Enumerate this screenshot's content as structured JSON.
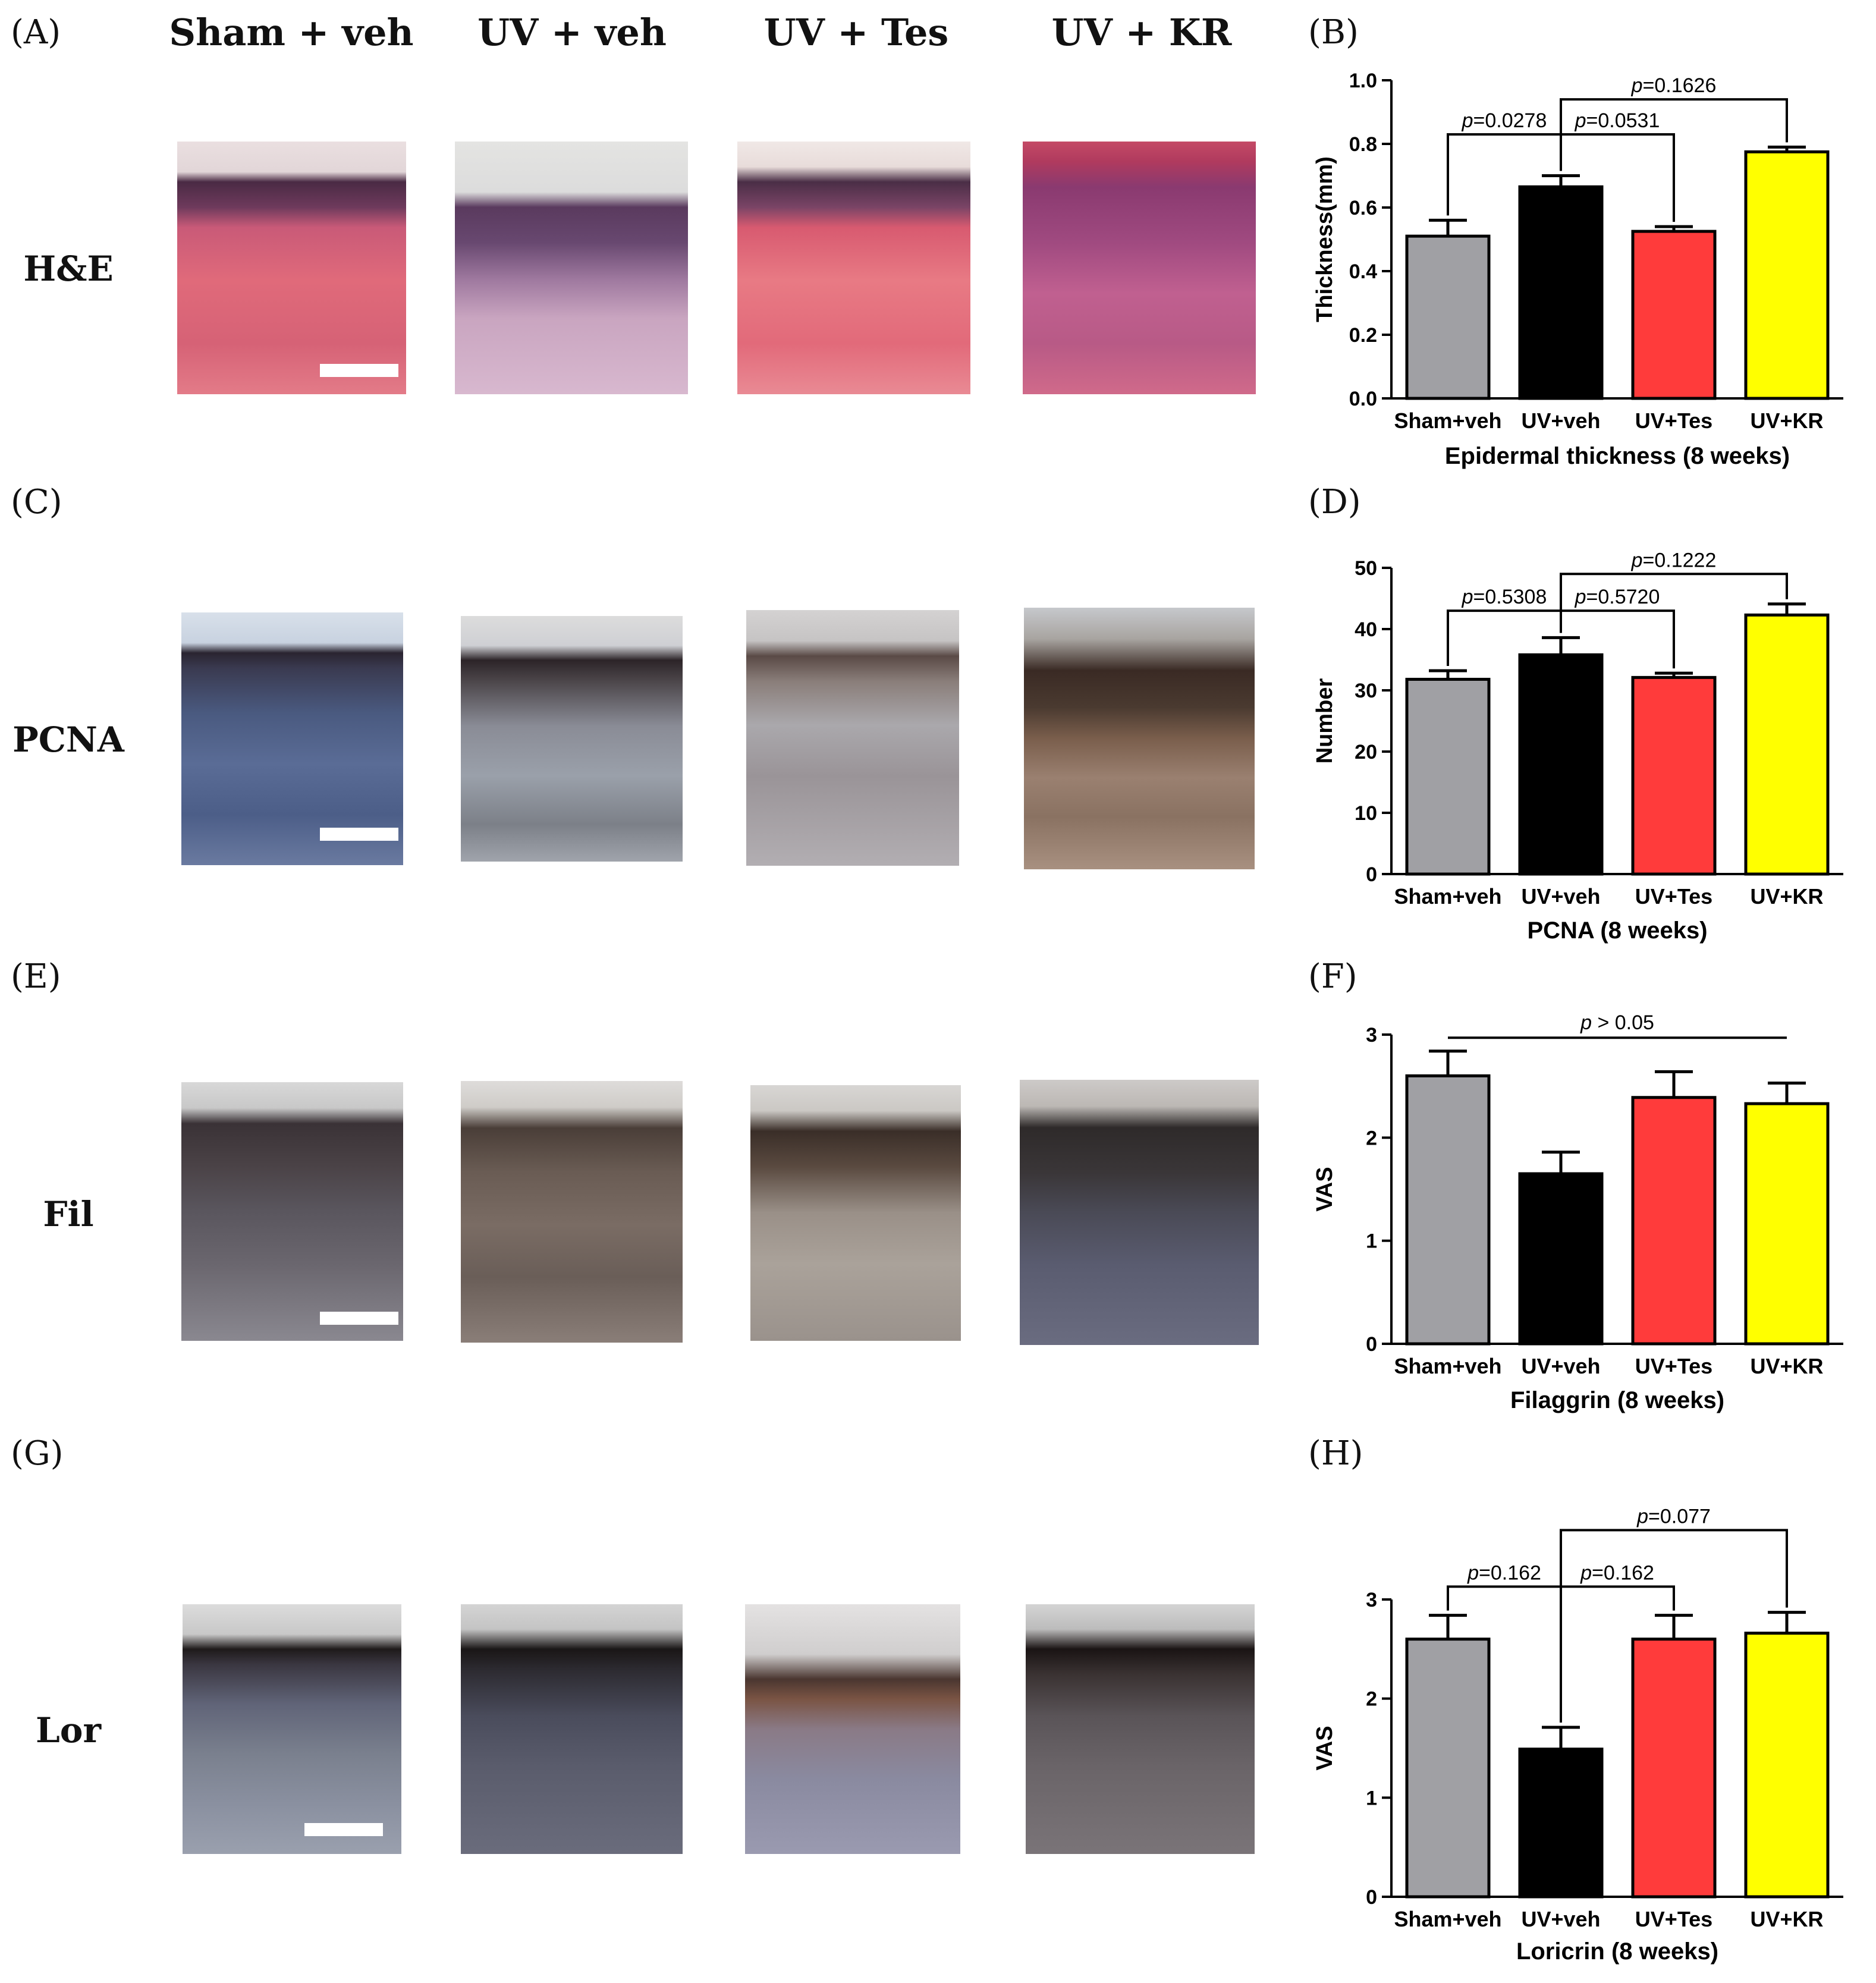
{
  "panel_letters": [
    "(A)",
    "(B)",
    "(C)",
    "(D)",
    "(E)",
    "(F)",
    "(G)",
    "(H)"
  ],
  "column_headers": [
    "Sham + veh",
    "UV + veh",
    "UV + Tes",
    "UV + KR"
  ],
  "row_labels": [
    "H&E",
    "PCNA",
    "Fil",
    "Lor"
  ],
  "chart_data": [
    {
      "type": "bar",
      "categories": [
        "Sham+veh",
        "UV+veh",
        "UV+Tes",
        "UV+KR"
      ],
      "values": [
        0.51,
        0.665,
        0.525,
        0.775
      ],
      "errors": [
        0.05,
        0.035,
        0.015,
        0.015
      ],
      "colors": [
        "#a0a0a4",
        "#000000",
        "#ff3b3b",
        "#ffff00"
      ],
      "xlabel": "Epidermal thickness (8 weeks)",
      "ylabel": "Thickness(mm)",
      "ylim": [
        0,
        1.0
      ],
      "yticks": [
        "0.0",
        "0.2",
        "0.4",
        "0.6",
        "0.8",
        "1.0"
      ],
      "comparisons": [
        {
          "from": 0,
          "to": 1,
          "p": "0.0278",
          "level": 0.83
        },
        {
          "from": 1,
          "to": 2,
          "p": "0.0531",
          "level": 0.83
        },
        {
          "from": 1,
          "to": 3,
          "p": "0.1626",
          "level": 0.94
        }
      ]
    },
    {
      "type": "bar",
      "categories": [
        "Sham+veh",
        "UV+veh",
        "UV+Tes",
        "UV+KR"
      ],
      "values": [
        31.8,
        35.8,
        32.1,
        42.3
      ],
      "errors": [
        1.4,
        2.8,
        0.7,
        1.8
      ],
      "colors": [
        "#a0a0a4",
        "#000000",
        "#ff3b3b",
        "#ffff00"
      ],
      "xlabel": "PCNA (8 weeks)",
      "ylabel": "Number",
      "ylim": [
        0,
        50
      ],
      "yticks": [
        "0",
        "10",
        "20",
        "30",
        "40",
        "50"
      ],
      "comparisons": [
        {
          "from": 0,
          "to": 1,
          "p": "0.5308",
          "level": 43
        },
        {
          "from": 1,
          "to": 2,
          "p": "0.5720",
          "level": 43
        },
        {
          "from": 1,
          "to": 3,
          "p": "0.1222",
          "level": 49
        }
      ]
    },
    {
      "type": "bar",
      "categories": [
        "Sham+veh",
        "UV+veh",
        "UV+Tes",
        "UV+KR"
      ],
      "values": [
        2.6,
        1.65,
        2.39,
        2.33
      ],
      "errors": [
        0.24,
        0.21,
        0.25,
        0.2
      ],
      "colors": [
        "#a0a0a4",
        "#000000",
        "#ff3b3b",
        "#ffff00"
      ],
      "xlabel": "Filaggrin (8 weeks)",
      "ylabel": "VAS",
      "ylim": [
        0,
        3
      ],
      "yticks": [
        "0",
        "1",
        "2",
        "3"
      ],
      "overall_comparison": {
        "from": 0,
        "to": 3,
        "p": "> 0.05",
        "level": 2.97
      }
    },
    {
      "type": "bar",
      "categories": [
        "Sham+veh",
        "UV+veh",
        "UV+Tes",
        "UV+KR"
      ],
      "values": [
        2.6,
        1.49,
        2.6,
        2.66
      ],
      "errors": [
        0.24,
        0.22,
        0.24,
        0.21
      ],
      "colors": [
        "#a0a0a4",
        "#000000",
        "#ff3b3b",
        "#ffff00"
      ],
      "xlabel": "Loricrin (8 weeks)",
      "ylabel": "VAS",
      "ylim": [
        0,
        3
      ],
      "yticks": [
        "0",
        "1",
        "2",
        "3"
      ],
      "comparisons": [
        {
          "from": 0,
          "to": 1,
          "p": "0.162",
          "level": 3.13
        },
        {
          "from": 1,
          "to": 2,
          "p": "0.162",
          "level": 3.13
        },
        {
          "from": 1,
          "to": 3,
          "p": "0.077",
          "level": 3.7
        }
      ]
    }
  ]
}
